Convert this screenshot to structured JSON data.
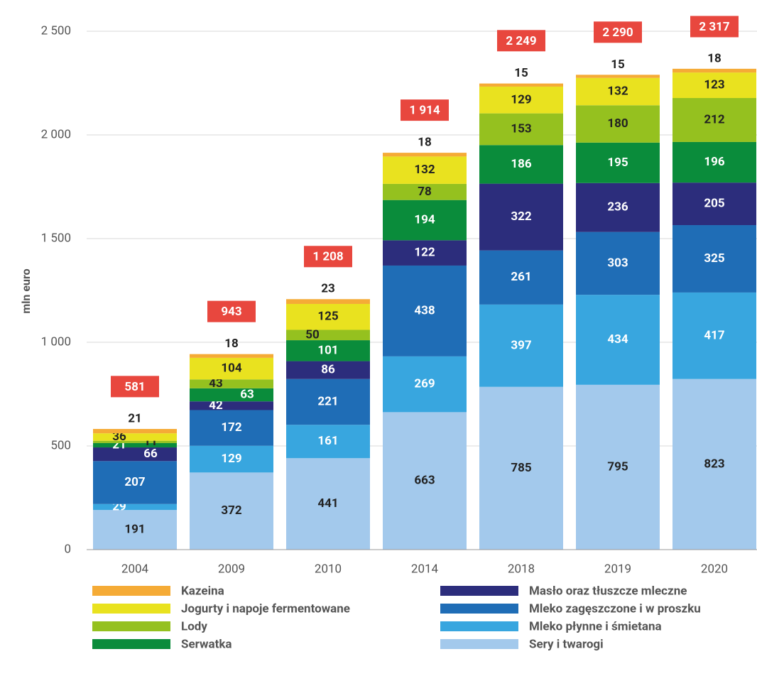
{
  "chart_data": {
    "type": "stacked_bar",
    "y_axis_label": "mln euro",
    "categories": [
      "2004",
      "2009",
      "2010",
      "2014",
      "2018",
      "2019",
      "2020"
    ],
    "series": [
      {
        "name": "Sery i twarogi",
        "color": "#a3c9ec",
        "values": [
          191,
          372,
          441,
          663,
          785,
          795,
          823
        ]
      },
      {
        "name": "Mleko płynne i śmietana",
        "color": "#38a6df",
        "values": [
          29,
          129,
          161,
          269,
          397,
          434,
          417
        ]
      },
      {
        "name": "Mleko zagęszczone i w proszku",
        "color": "#1f6db6",
        "values": [
          207,
          172,
          221,
          438,
          261,
          303,
          325
        ]
      },
      {
        "name": "Masło oraz tłuszcze mleczne",
        "color": "#2c2d7c",
        "values": [
          66,
          42,
          86,
          122,
          322,
          236,
          205
        ]
      },
      {
        "name": "Serwatka",
        "color": "#0a8c3b",
        "values": [
          21,
          63,
          101,
          194,
          186,
          195,
          196
        ]
      },
      {
        "name": "Lody",
        "color": "#95c11f",
        "values": [
          11,
          43,
          50,
          78,
          153,
          180,
          212
        ]
      },
      {
        "name": "Jogurty i napoje fermentowane",
        "color": "#e9e21f",
        "values": [
          36,
          104,
          125,
          132,
          129,
          132,
          123
        ]
      },
      {
        "name": "Kazeina",
        "color": "#f5ab36",
        "values": [
          21,
          18,
          23,
          18,
          15,
          15,
          18
        ]
      }
    ],
    "totals": [
      581,
      943,
      1208,
      1914,
      2249,
      2290,
      2317
    ],
    "total_labels": [
      "581",
      "943",
      "1 208",
      "1 914",
      "2 249",
      "2 290",
      "2 317"
    ],
    "total_color": "#e8473e",
    "ylim": [
      0,
      2500
    ],
    "yticks": [
      0,
      500,
      {
        "value": 1000,
        "label": "1 000"
      },
      {
        "value": 1500,
        "label": "1 500"
      },
      {
        "value": 2000,
        "label": "2 000"
      },
      {
        "value": 2500,
        "label": "2 500"
      }
    ],
    "grid": true
  }
}
